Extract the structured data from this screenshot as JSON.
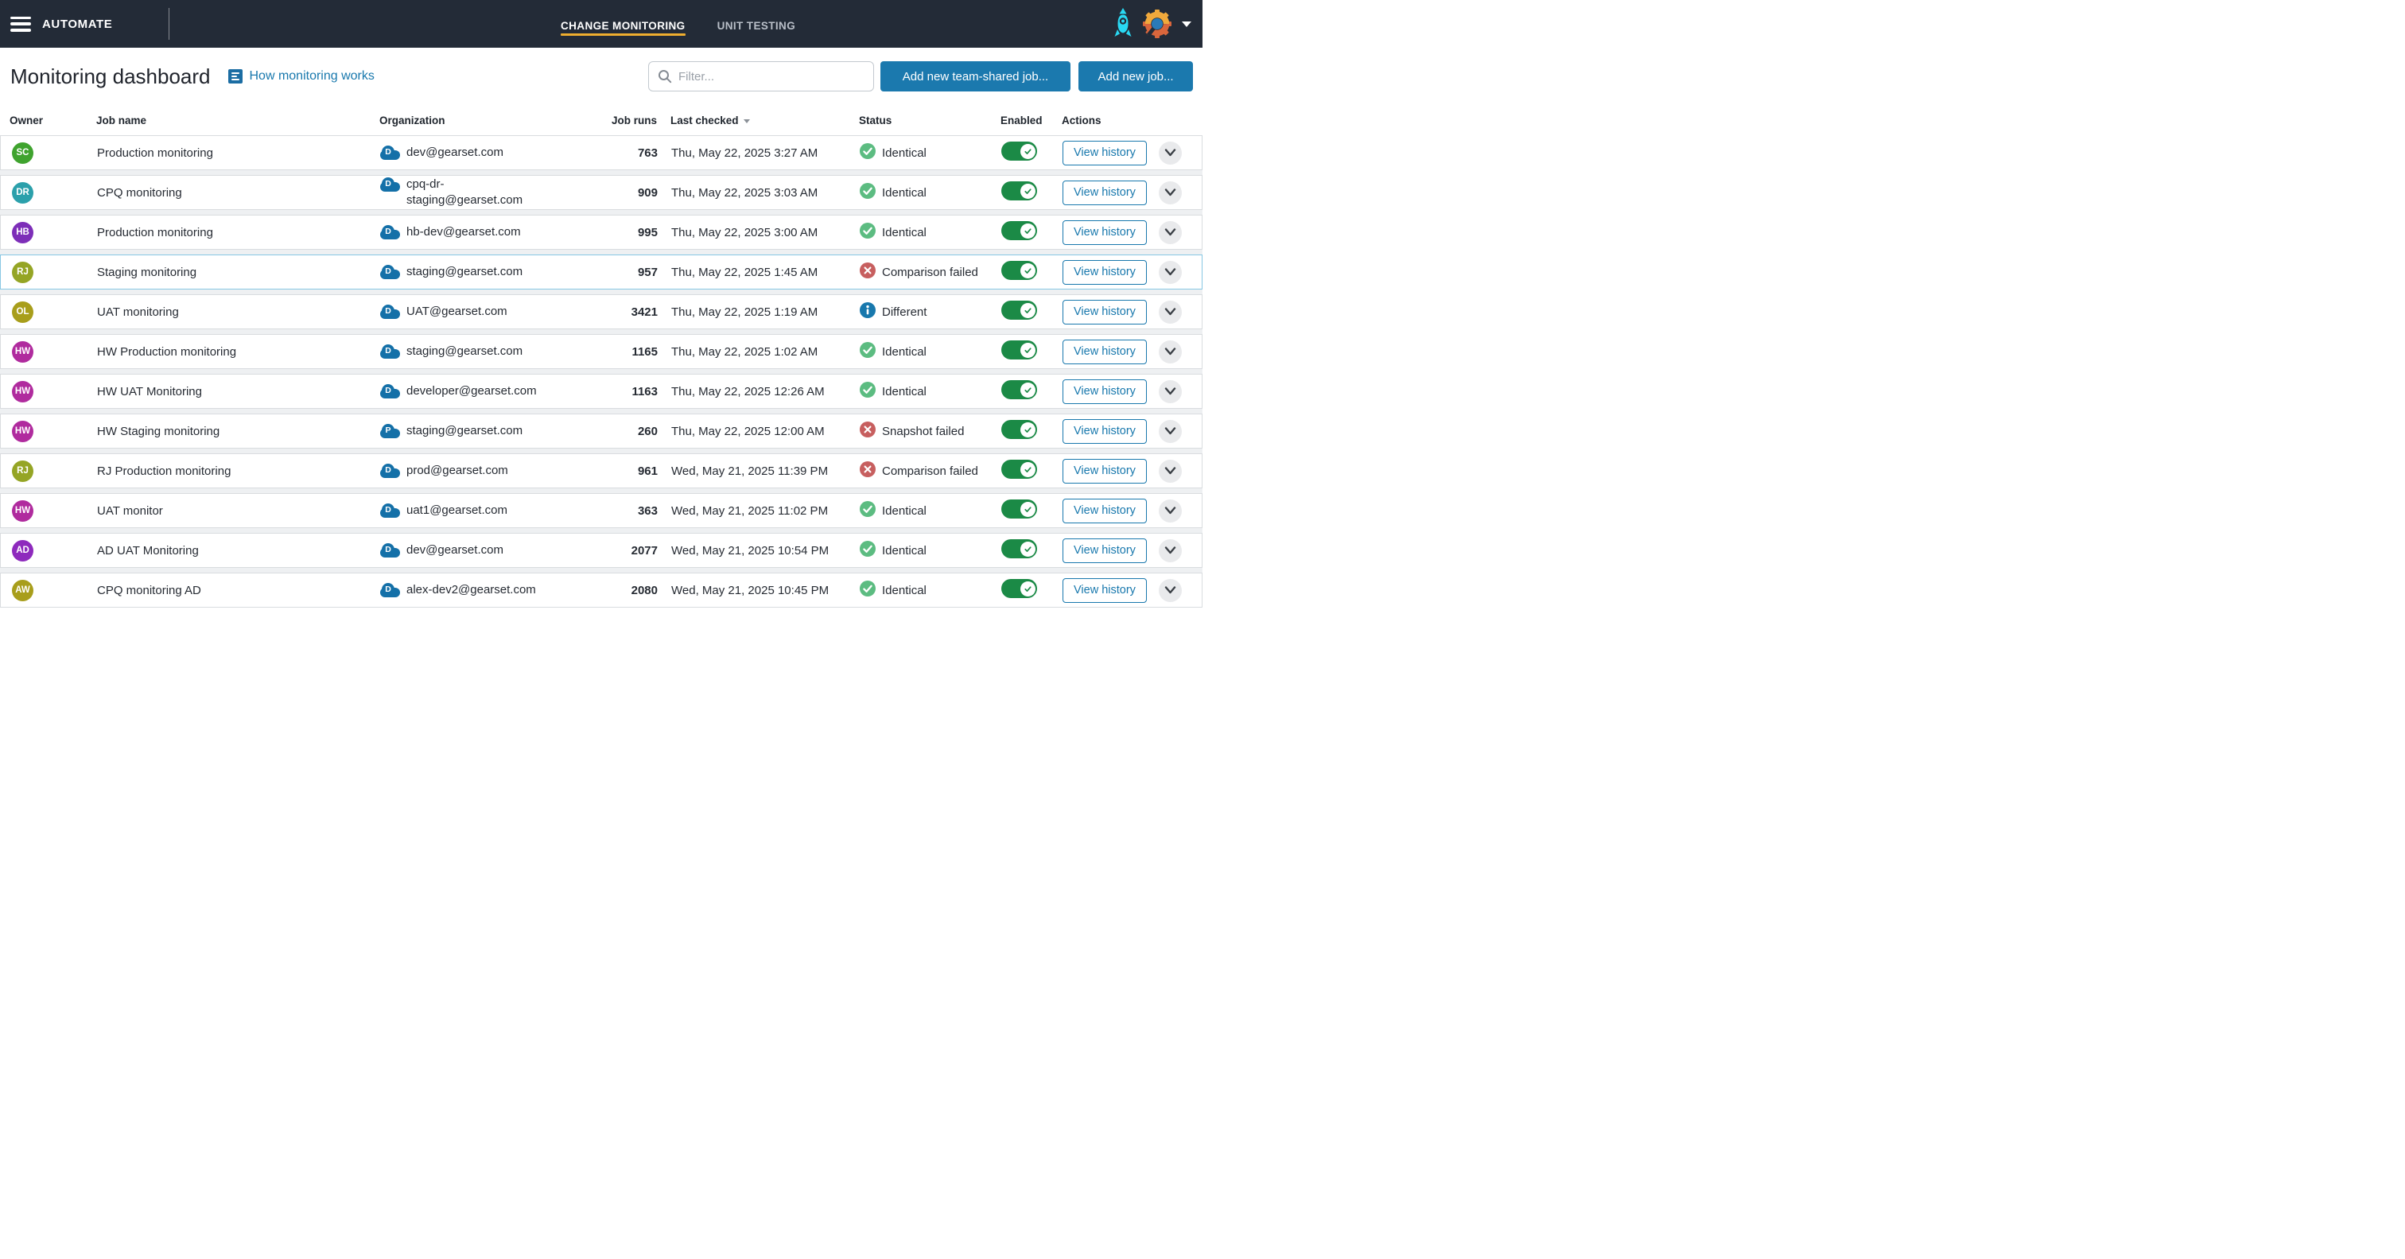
{
  "topbar": {
    "brand": "AUTOMATE",
    "tabs": [
      {
        "label": "CHANGE MONITORING",
        "active": true
      },
      {
        "label": "UNIT TESTING",
        "active": false
      }
    ]
  },
  "header": {
    "title": "Monitoring dashboard",
    "help_link": "How monitoring works",
    "filter_placeholder": "Filter...",
    "add_team_shared_label": "Add new team-shared job...",
    "add_job_label": "Add new job..."
  },
  "table": {
    "columns": [
      "Owner",
      "Job name",
      "Organization",
      "Job runs",
      "Last checked",
      "Status",
      "Enabled",
      "Actions"
    ],
    "sorted_column": "Last checked",
    "view_history_label": "View history",
    "rows": [
      {
        "initials": "SC",
        "avatar_color": "#3fa32e",
        "job_name": "Production monitoring",
        "org_type": "D",
        "org_email": "dev@gearset.com",
        "job_runs": "763",
        "last_checked": "Thu, May 22, 2025 3:27 AM",
        "status": "Identical",
        "status_kind": "identical",
        "enabled": true,
        "selected": false
      },
      {
        "initials": "DR",
        "avatar_color": "#2ba0ab",
        "job_name": "CPQ monitoring",
        "org_type": "D",
        "org_email": "cpq-dr-staging@gearset.com",
        "job_runs": "909",
        "last_checked": "Thu, May 22, 2025 3:03 AM",
        "status": "Identical",
        "status_kind": "identical",
        "enabled": true,
        "selected": false
      },
      {
        "initials": "HB",
        "avatar_color": "#7d2eb8",
        "job_name": "Production monitoring",
        "org_type": "D",
        "org_email": "hb-dev@gearset.com",
        "job_runs": "995",
        "last_checked": "Thu, May 22, 2025 3:00 AM",
        "status": "Identical",
        "status_kind": "identical",
        "enabled": true,
        "selected": false
      },
      {
        "initials": "RJ",
        "avatar_color": "#95a525",
        "job_name": "Staging monitoring",
        "org_type": "D",
        "org_email": "staging@gearset.com",
        "job_runs": "957",
        "last_checked": "Thu, May 22, 2025 1:45 AM",
        "status": "Comparison failed",
        "status_kind": "failed",
        "enabled": true,
        "selected": true
      },
      {
        "initials": "OL",
        "avatar_color": "#a89e1b",
        "job_name": "UAT monitoring",
        "org_type": "D",
        "org_email": "UAT@gearset.com",
        "job_runs": "3421",
        "last_checked": "Thu, May 22, 2025 1:19 AM",
        "status": "Different",
        "status_kind": "different",
        "enabled": true,
        "selected": false
      },
      {
        "initials": "HW",
        "avatar_color": "#b02b9e",
        "job_name": "HW Production monitoring",
        "org_type": "D",
        "org_email": "staging@gearset.com",
        "job_runs": "1165",
        "last_checked": "Thu, May 22, 2025 1:02 AM",
        "status": "Identical",
        "status_kind": "identical",
        "enabled": true,
        "selected": false
      },
      {
        "initials": "HW",
        "avatar_color": "#b02b9e",
        "job_name": "HW UAT Monitoring",
        "org_type": "D",
        "org_email": "developer@gearset.com",
        "job_runs": "1163",
        "last_checked": "Thu, May 22, 2025 12:26 AM",
        "status": "Identical",
        "status_kind": "identical",
        "enabled": true,
        "selected": false
      },
      {
        "initials": "HW",
        "avatar_color": "#b02b9e",
        "job_name": "HW Staging monitoring",
        "org_type": "P",
        "org_email": "staging@gearset.com",
        "job_runs": "260",
        "last_checked": "Thu, May 22, 2025 12:00 AM",
        "status": "Snapshot failed",
        "status_kind": "failed",
        "enabled": true,
        "selected": false
      },
      {
        "initials": "RJ",
        "avatar_color": "#95a525",
        "job_name": "RJ Production monitoring",
        "org_type": "D",
        "org_email": "prod@gearset.com",
        "job_runs": "961",
        "last_checked": "Wed, May 21, 2025 11:39 PM",
        "status": "Comparison failed",
        "status_kind": "failed",
        "enabled": true,
        "selected": false
      },
      {
        "initials": "HW",
        "avatar_color": "#b02b9e",
        "job_name": "UAT monitor",
        "org_type": "D",
        "org_email": "uat1@gearset.com",
        "job_runs": "363",
        "last_checked": "Wed, May 21, 2025 11:02 PM",
        "status": "Identical",
        "status_kind": "identical",
        "enabled": true,
        "selected": false
      },
      {
        "initials": "AD",
        "avatar_color": "#8e2abd",
        "job_name": "AD UAT Monitoring",
        "org_type": "D",
        "org_email": "dev@gearset.com",
        "job_runs": "2077",
        "last_checked": "Wed, May 21, 2025 10:54 PM",
        "status": "Identical",
        "status_kind": "identical",
        "enabled": true,
        "selected": false
      },
      {
        "initials": "AW",
        "avatar_color": "#a89e1b",
        "job_name": "CPQ monitoring AD",
        "org_type": "D",
        "org_email": "alex-dev2@gearset.com",
        "job_runs": "2080",
        "last_checked": "Wed, May 21, 2025 10:45 PM",
        "status": "Identical",
        "status_kind": "identical",
        "enabled": true,
        "selected": false
      }
    ]
  },
  "colors": {
    "topbar_bg": "#232b37",
    "accent_underline": "#efae2f",
    "brand_blue": "#1878ad",
    "identical_green": "#5cbc81",
    "failed_red": "#c75f5f",
    "different_blue": "#1878ad",
    "toggle_green": "#1b8a46",
    "selected_row_border": "#87c7e3"
  }
}
